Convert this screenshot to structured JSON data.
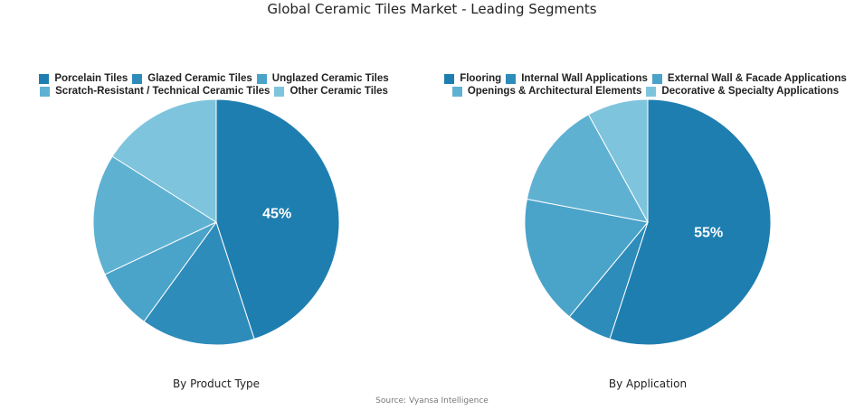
{
  "title": "Global Ceramic Tiles Market - Leading Segments",
  "source": "Source: Vyansa Intelligence",
  "chart_data": [
    {
      "type": "pie",
      "title": "By Product Type",
      "labels": [
        "Porcelain Tiles",
        "Glazed Ceramic Tiles",
        "Unglazed Ceramic Tiles",
        "Scratch-Resistant / Technical Ceramic Tiles",
        "Other Ceramic Tiles"
      ],
      "values": [
        45,
        15,
        8,
        16,
        16
      ],
      "colors": [
        "#1f7eb0",
        "#2e8cbb",
        "#4aa3c9",
        "#5fb1d2",
        "#7fc4dd"
      ],
      "data_labels": [
        "45%",
        "",
        "",
        "",
        ""
      ],
      "legend_rows": [
        [
          0,
          1,
          2
        ],
        [
          3,
          4
        ]
      ],
      "legend_position": "top"
    },
    {
      "type": "pie",
      "title": "By Application",
      "labels": [
        "Flooring",
        "Internal Wall Applications",
        "External Wall & Facade Applications",
        "Openings & Architectural Elements",
        "Decorative & Specialty Applications"
      ],
      "values": [
        55,
        6,
        17,
        14,
        8
      ],
      "colors": [
        "#1f7eb0",
        "#2e8cbb",
        "#4aa3c9",
        "#5fb1d2",
        "#7fc4dd"
      ],
      "data_labels": [
        "55%",
        "",
        "",
        "",
        ""
      ],
      "legend_rows": [
        [
          0,
          1,
          2
        ],
        [
          3,
          4
        ]
      ],
      "legend_position": "top"
    }
  ]
}
